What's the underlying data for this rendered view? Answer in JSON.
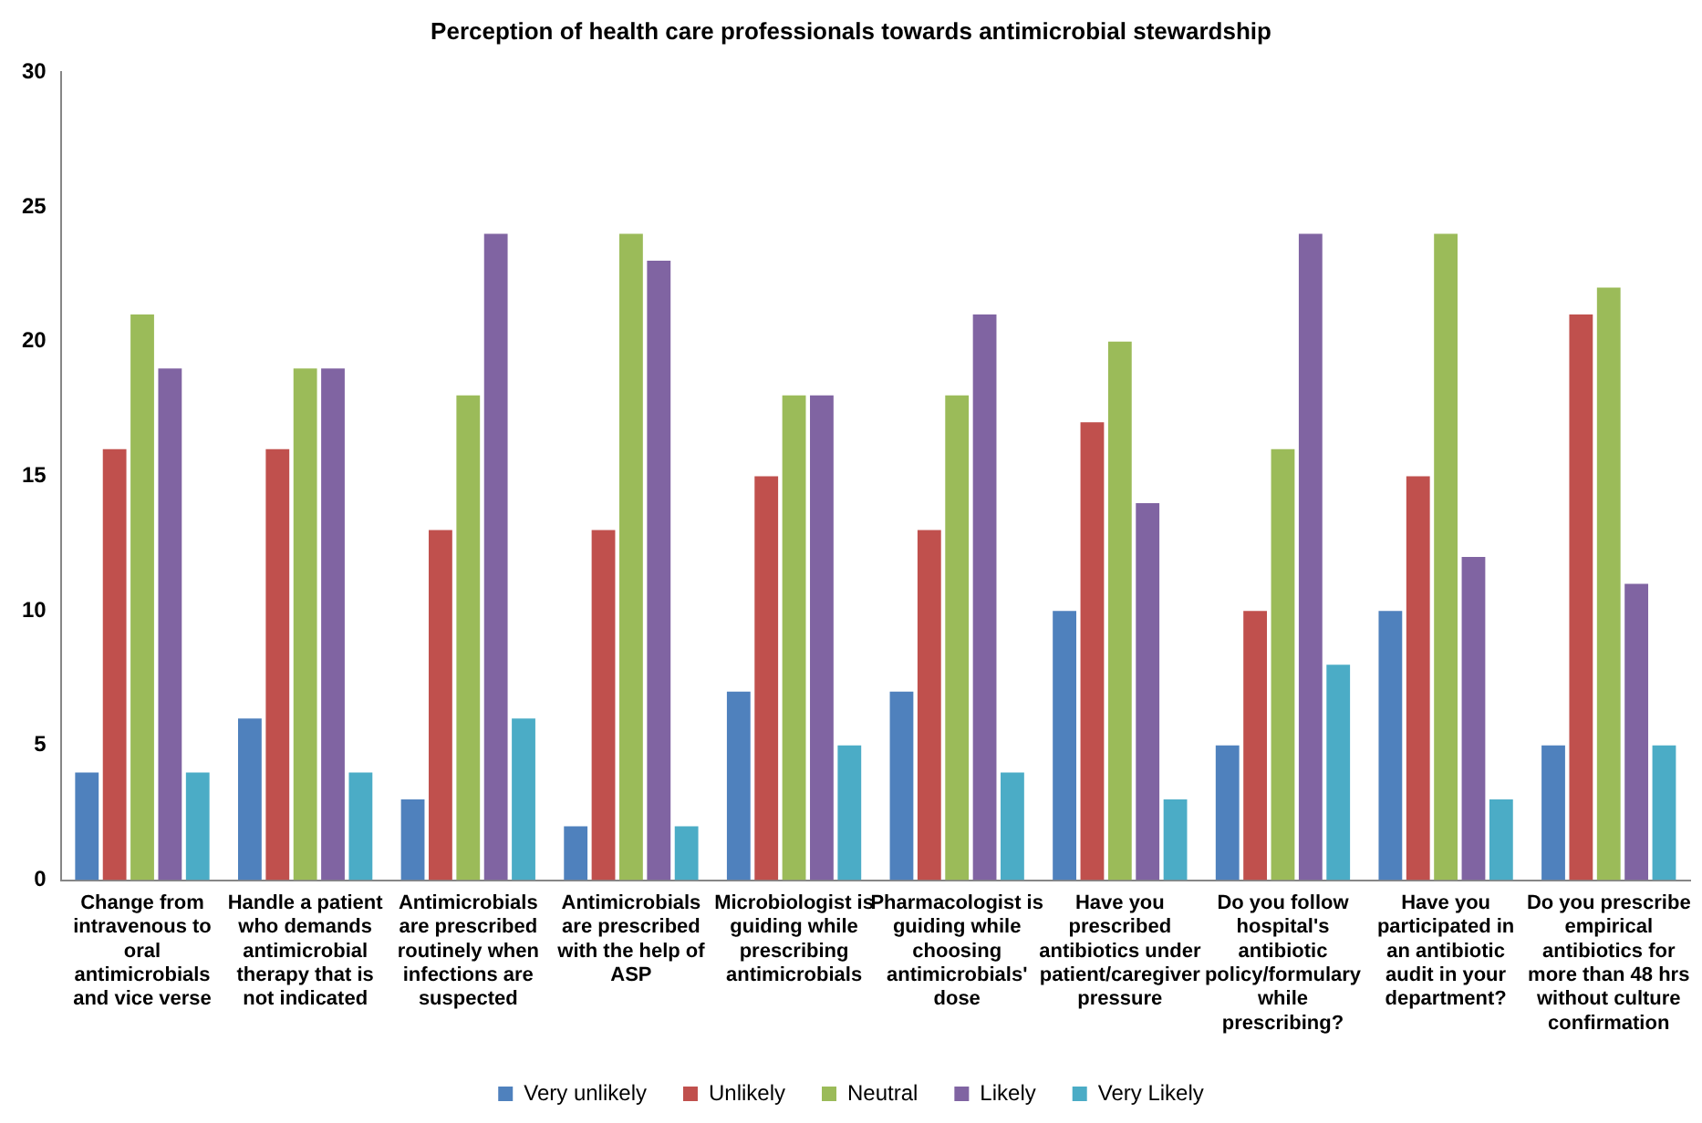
{
  "chart_data": {
    "type": "bar",
    "title": "Perception of health care professionals towards antimicrobial stewardship",
    "categories": [
      "Change from intravenous to oral antimicrobials and vice verse",
      "Handle a patient who demands antimicrobial therapy that is not indicated",
      "Antimicrobials are prescribed routinely when infections are suspected",
      "Antimicrobials are prescribed with the help of ASP",
      "Microbiologist is guiding while prescribing antimicrobials",
      "Pharmacologist is guiding while choosing antimicrobials' dose",
      "Have you prescribed antibiotics under patient/caregiver pressure",
      "Do you follow hospital's antibiotic policy/formulary while prescribing?",
      "Have you participated in an antibiotic audit in your department?",
      "Do you prescribe empirical antibiotics for more than 48 hrs without culture confirmation"
    ],
    "series": [
      {
        "name": "Very unlikely",
        "color": "#4f81bd",
        "values": [
          4,
          6,
          3,
          2,
          7,
          7,
          10,
          5,
          10,
          5
        ]
      },
      {
        "name": "Unlikely",
        "color": "#c0504d",
        "values": [
          16,
          16,
          13,
          13,
          15,
          13,
          17,
          10,
          15,
          21
        ]
      },
      {
        "name": "Neutral",
        "color": "#9bbb59",
        "values": [
          21,
          19,
          18,
          24,
          18,
          18,
          20,
          16,
          24,
          22
        ]
      },
      {
        "name": "Likely",
        "color": "#8064a2",
        "values": [
          19,
          19,
          24,
          23,
          18,
          21,
          14,
          24,
          12,
          11
        ]
      },
      {
        "name": "Very Likely",
        "color": "#4bacc6",
        "values": [
          4,
          4,
          6,
          2,
          5,
          4,
          3,
          8,
          3,
          5
        ]
      }
    ],
    "ylim": [
      0,
      30
    ],
    "yticks": [
      0,
      5,
      10,
      15,
      20,
      25,
      30
    ],
    "grid": false,
    "legend": "bottom"
  }
}
